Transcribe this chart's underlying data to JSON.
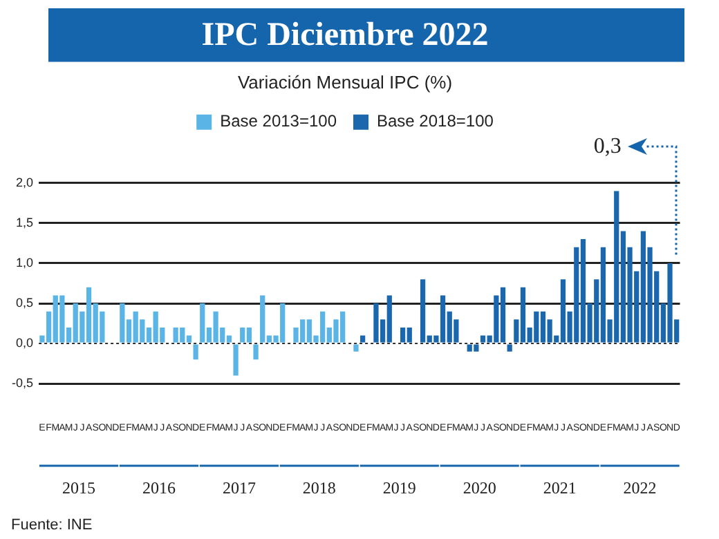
{
  "chart_data": {
    "type": "bar",
    "title": "IPC Diciembre 2022",
    "subtitle": "Variación Mensual IPC (%)",
    "categories": [
      "E",
      "F",
      "M",
      "A",
      "M",
      "J",
      "J",
      "A",
      "S",
      "O",
      "N",
      "D",
      "E",
      "F",
      "M",
      "A",
      "M",
      "J",
      "J",
      "A",
      "S",
      "O",
      "N",
      "D",
      "E",
      "F",
      "M",
      "A",
      "M",
      "J",
      "J",
      "A",
      "S",
      "O",
      "N",
      "D",
      "E",
      "F",
      "M",
      "A",
      "M",
      "J",
      "J",
      "A",
      "S",
      "O",
      "N",
      "D",
      "E",
      "F",
      "M",
      "A",
      "M",
      "J",
      "J",
      "A",
      "S",
      "O",
      "N",
      "D",
      "E",
      "F",
      "M",
      "A",
      "M",
      "J",
      "J",
      "A",
      "S",
      "O",
      "N",
      "D",
      "E",
      "F",
      "M",
      "A",
      "M",
      "J",
      "J",
      "A",
      "S",
      "O",
      "N",
      "D",
      "E",
      "F",
      "M",
      "A",
      "M",
      "J",
      "J",
      "A",
      "S",
      "O",
      "N",
      "D"
    ],
    "series": [
      {
        "name": "Base 2013=100",
        "color": "#5ab4e5",
        "values": [
          0.1,
          0.4,
          0.6,
          0.6,
          0.2,
          0.5,
          0.4,
          0.7,
          0.5,
          0.4,
          0.0,
          0.0,
          0.5,
          0.3,
          0.4,
          0.3,
          0.2,
          0.4,
          0.2,
          0.0,
          0.2,
          0.2,
          0.1,
          -0.2,
          0.5,
          0.2,
          0.4,
          0.2,
          0.1,
          -0.4,
          0.2,
          0.2,
          -0.2,
          0.6,
          0.1,
          0.1,
          0.5,
          0.0,
          0.2,
          0.3,
          0.3,
          0.1,
          0.4,
          0.2,
          0.3,
          0.4,
          0.0,
          -0.1,
          null,
          null,
          null,
          null,
          null,
          null,
          null,
          null,
          null,
          null,
          null,
          null,
          null,
          null,
          null,
          null,
          null,
          null,
          null,
          null,
          null,
          null,
          null,
          null,
          null,
          null,
          null,
          null,
          null,
          null,
          null,
          null,
          null,
          null,
          null,
          null,
          null,
          null,
          null,
          null,
          null,
          null,
          null,
          null,
          null,
          null,
          null,
          null
        ]
      },
      {
        "name": "Base 2018=100",
        "color": "#1a67ae",
        "values": [
          null,
          null,
          null,
          null,
          null,
          null,
          null,
          null,
          null,
          null,
          null,
          null,
          null,
          null,
          null,
          null,
          null,
          null,
          null,
          null,
          null,
          null,
          null,
          null,
          null,
          null,
          null,
          null,
          null,
          null,
          null,
          null,
          null,
          null,
          null,
          null,
          null,
          null,
          null,
          null,
          null,
          null,
          null,
          null,
          null,
          null,
          null,
          null,
          0.1,
          0.0,
          0.5,
          0.3,
          0.6,
          0.0,
          0.2,
          0.2,
          0.0,
          0.8,
          0.1,
          0.1,
          0.6,
          0.4,
          0.3,
          0.0,
          -0.1,
          -0.1,
          0.1,
          0.1,
          0.6,
          0.7,
          -0.1,
          0.3,
          0.7,
          0.2,
          0.4,
          0.4,
          0.3,
          0.1,
          0.8,
          0.4,
          1.2,
          1.3,
          0.5,
          0.8,
          1.2,
          0.3,
          1.9,
          1.4,
          1.2,
          0.9,
          1.4,
          1.2,
          0.9,
          0.5,
          1.0,
          0.3
        ]
      }
    ],
    "ylim": [
      -0.5,
      2
    ],
    "yticks": [
      {
        "value": -0.5,
        "label": "-0,5"
      },
      {
        "value": 0,
        "label": "0,0"
      },
      {
        "value": 0.5,
        "label": "0,5"
      },
      {
        "value": 1,
        "label": "1,0"
      },
      {
        "value": 1.5,
        "label": "1,5"
      },
      {
        "value": 2,
        "label": "2,0"
      }
    ],
    "grid": "y",
    "legend": "top",
    "ref_lines": [
      {
        "axis": "y",
        "value": 0,
        "color": "#333333",
        "line_style": "dotted"
      }
    ],
    "annotations": [
      "2015",
      "2016",
      "2017",
      "2018",
      "2019",
      "2020",
      "2021",
      "2022",
      "0,3",
      "Fuente: INE"
    ]
  }
}
